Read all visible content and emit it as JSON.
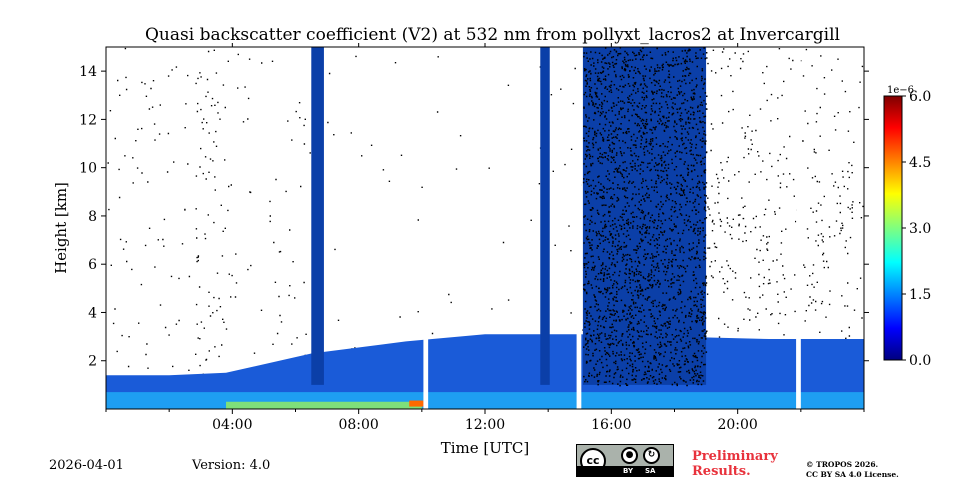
{
  "chart_data": {
    "type": "heatmap",
    "title": "Quasi backscatter coefficient (V2) at 532 nm from pollyxt_lacros2 at Invercargill",
    "xlabel": "Time [UTC]",
    "ylabel": "Height [km]",
    "xlim": [
      0,
      24
    ],
    "ylim": [
      0,
      15
    ],
    "xticks": [
      4,
      8,
      12,
      16,
      20
    ],
    "xtick_labels": [
      "04:00",
      "08:00",
      "12:00",
      "16:00",
      "20:00"
    ],
    "yticks": [
      2,
      4,
      6,
      8,
      10,
      12,
      14
    ],
    "ytick_labels": [
      "2",
      "4",
      "6",
      "8",
      "10",
      "12",
      "14"
    ],
    "colorbar": {
      "min": 0,
      "max": 6.0,
      "scale_label": "1e−6",
      "ticks": [
        0,
        1.5,
        3.0,
        4.5,
        6.0
      ],
      "tick_labels": [
        "0.0",
        "1.5",
        "3.0",
        "4.5",
        "6.0"
      ],
      "colormap": "jet"
    },
    "boundary_layer_top_km": [
      [
        0,
        1.4
      ],
      [
        2,
        1.4
      ],
      [
        3.8,
        1.5
      ],
      [
        6.5,
        2.3
      ],
      [
        9.5,
        2.8
      ],
      [
        12,
        3.1
      ],
      [
        15,
        3.1
      ],
      [
        18,
        3.0
      ],
      [
        21,
        2.9
      ],
      [
        24,
        2.9
      ]
    ],
    "deep_cloud_segments": [
      {
        "start_h": 15.1,
        "end_h": 19.0,
        "top_km": 15.0
      },
      {
        "start_h": 13.75,
        "end_h": 14.05,
        "top_km": 15.0
      },
      {
        "start_h": 6.5,
        "end_h": 6.9,
        "top_km": 15.0
      }
    ],
    "data_gaps_h": [
      [
        10.05,
        10.2
      ],
      [
        14.9,
        15.05
      ],
      [
        21.85,
        22.0
      ]
    ]
  },
  "footer": {
    "date": "2026-04-01",
    "version": "Version: 4.0",
    "preliminary_line1": "Preliminary",
    "preliminary_line2": "Results.",
    "copyright_line1": "© TROPOS 2026.",
    "copyright_line2": "CC BY SA 4.0 License.",
    "badge_cc": "cc",
    "badge_by": "BY",
    "badge_sa": "SA"
  }
}
